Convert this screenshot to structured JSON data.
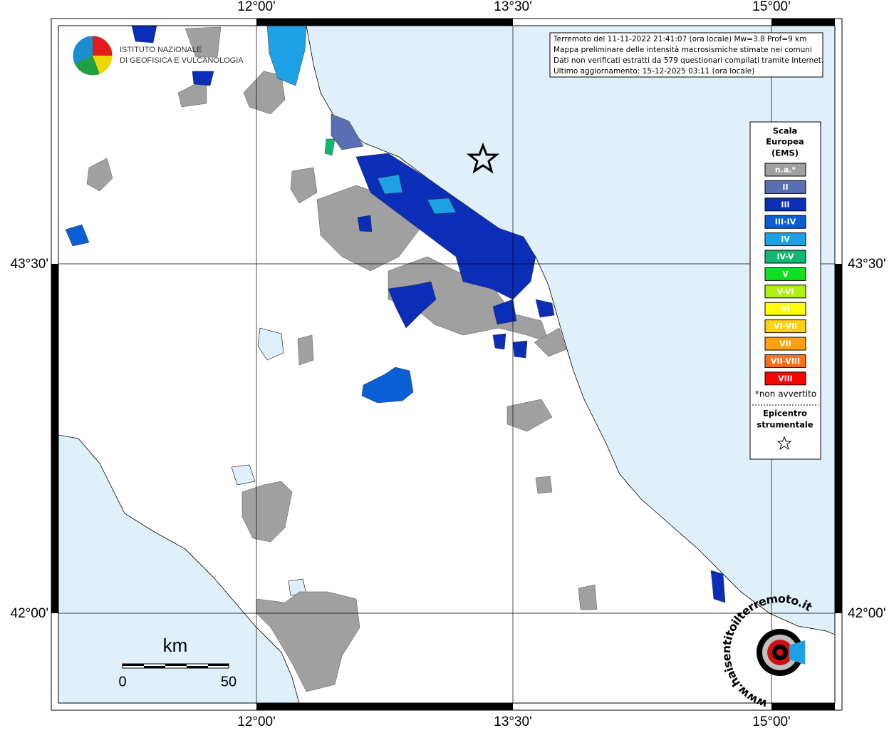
{
  "map": {
    "lon_labels": [
      "12°00'",
      "13°30'",
      "15°00'"
    ],
    "lat_labels": [
      "43°30'",
      "42°00'"
    ]
  },
  "info": [
    "Terremoto del 11-11-2022 21:41:07 (ora locale) Mw=3.8 Prof=9 km",
    "Mappa preliminare delle intensità macrosismiche stimate nei comuni",
    "Dati non verificati estratti da 579 questionari compilati tramite Internet.",
    "Ultimo aggiornamento: 15-12-2025 03:11 (ora locale)"
  ],
  "legend": {
    "title": [
      "Scala",
      "Europea",
      "(EMS)"
    ],
    "items": [
      {
        "label": "n.a.*",
        "color": "#a0a0a0"
      },
      {
        "label": "II",
        "color": "#5b6fb5"
      },
      {
        "label": "III",
        "color": "#0a2eb8"
      },
      {
        "label": "III-IV",
        "color": "#0a5fd6"
      },
      {
        "label": "IV",
        "color": "#1ea0e6"
      },
      {
        "label": "IV-V",
        "color": "#10b870"
      },
      {
        "label": "V",
        "color": "#10e020"
      },
      {
        "label": "V-VI",
        "color": "#b0f010"
      },
      {
        "label": "VI",
        "color": "#ffff00"
      },
      {
        "label": "VI-VII",
        "color": "#ffd010"
      },
      {
        "label": "VII",
        "color": "#ffa010"
      },
      {
        "label": "VII-VIII",
        "color": "#ff7010"
      },
      {
        "label": "VIII",
        "color": "#ff0000"
      }
    ],
    "note": "*non avvertito",
    "epicenter": [
      "Epicentro",
      "strumentale"
    ]
  },
  "scale_bar": {
    "unit": "km",
    "labels": [
      "0",
      "50"
    ]
  },
  "logo": {
    "line1": "ISTITUTO NAZIONALE",
    "line2": "DI GEOFISICA E VULCANOLOGIA",
    "url": "www.haisentitoilterremoto.it"
  }
}
